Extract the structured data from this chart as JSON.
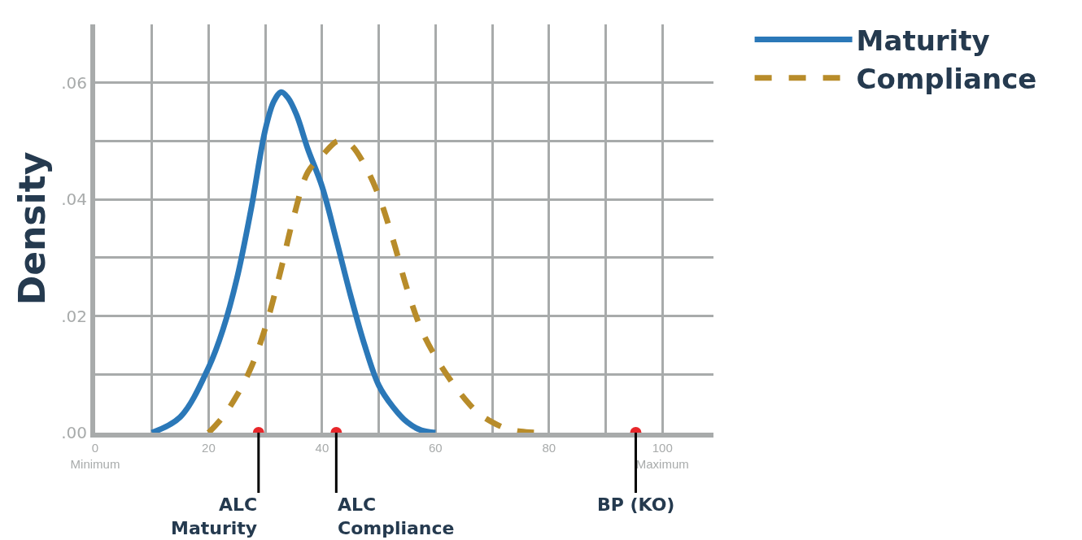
{
  "chart_data": {
    "type": "line",
    "ylabel": "Density",
    "series": [
      {
        "name": "Maturity",
        "color": "#2b78b8",
        "line_style": "solid",
        "x": [
          10,
          15,
          20,
          22.5,
          25,
          27.5,
          30,
          31.5,
          32.8,
          34,
          35.5,
          37.5,
          40,
          42.5,
          45,
          47.5,
          50,
          52.5,
          55,
          57.5,
          60
        ],
        "values": [
          0,
          0.0027,
          0.0112,
          0.0176,
          0.0265,
          0.0384,
          0.052,
          0.0568,
          0.0584,
          0.0574,
          0.0545,
          0.0486,
          0.0422,
          0.0331,
          0.0236,
          0.015,
          0.0081,
          0.0044,
          0.0018,
          0.0004,
          0
        ]
      },
      {
        "name": "Compliance",
        "color": "#b88c2a",
        "line_style": "dashed",
        "x": [
          20,
          22.5,
          25,
          27.5,
          30,
          32.5,
          35,
          37.5,
          40,
          42.5,
          43.4,
          45,
          47.5,
          50,
          52.5,
          55,
          57.5,
          60,
          62.5,
          65,
          67.5,
          70,
          72.5,
          75,
          78
        ],
        "values": [
          0,
          0.0027,
          0.0064,
          0.0112,
          0.018,
          0.027,
          0.037,
          0.0447,
          0.0475,
          0.0499,
          0.05,
          0.0494,
          0.0459,
          0.0406,
          0.0331,
          0.0246,
          0.0177,
          0.013,
          0.0092,
          0.006,
          0.0034,
          0.0018,
          0.0007,
          0.0002,
          0
        ]
      }
    ],
    "xlim": [
      0,
      109
    ],
    "xticks": [
      {
        "value": 0,
        "label": "0\nMinimum"
      },
      {
        "value": 10,
        "label": null
      },
      20,
      {
        "value": 30,
        "label": null
      },
      40,
      {
        "value": 50,
        "label": null
      },
      60,
      {
        "value": 70,
        "label": null
      },
      80,
      {
        "value": 90,
        "label": null
      },
      {
        "value": 100,
        "label": "100\nMaximum"
      }
    ],
    "ylim": [
      0,
      0.07
    ],
    "yticks": [
      {
        "value": 0,
        "label": ".00"
      },
      {
        "value": 0.01,
        "label": null
      },
      {
        "value": 0.02,
        "label": ".02"
      },
      {
        "value": 0.03,
        "label": null
      },
      {
        "value": 0.04,
        "label": ".04"
      },
      {
        "value": 0.05,
        "label": null
      },
      {
        "value": 0.06,
        "label": ".06"
      }
    ],
    "grid": true,
    "legend": "top right",
    "marker": "none",
    "annotations": [
      {
        "text": "ALC\nMaturity",
        "x": 28.8,
        "y": 0
      },
      {
        "text": "ALC\nCompliance",
        "x": 42.5,
        "y": 0
      },
      {
        "text": "BP (KO)",
        "x": 95.3,
        "y": 0
      }
    ]
  }
}
